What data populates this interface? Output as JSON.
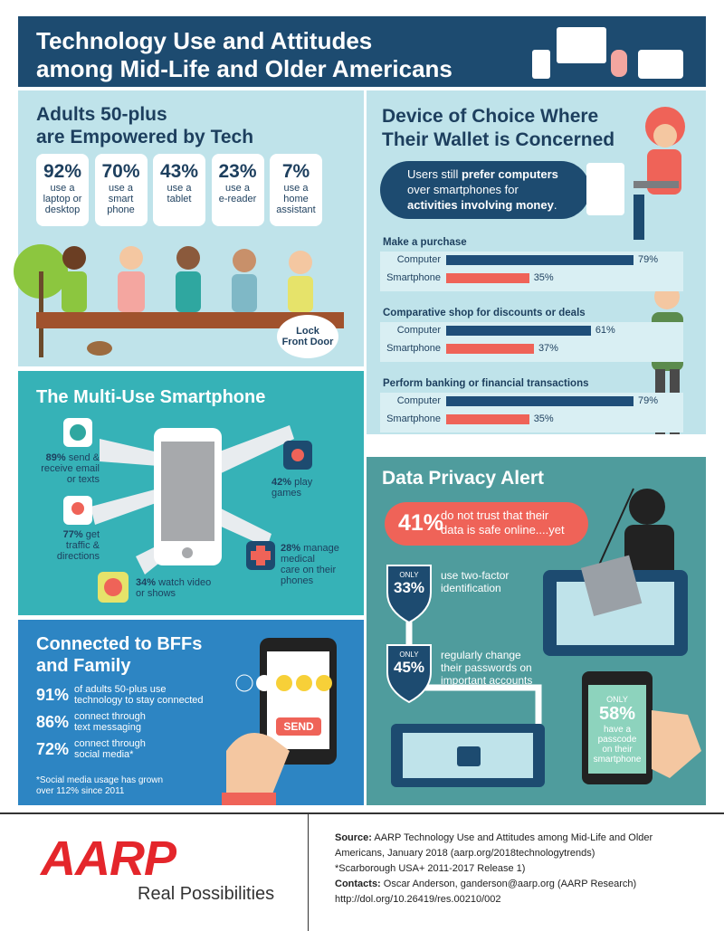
{
  "header": {
    "title_lines": [
      "Technology Use and Attitudes",
      "among Mid-Life and Older Americans"
    ]
  },
  "empowered": {
    "title_lines": [
      "Adults 50-plus",
      "are Empowered by Tech"
    ],
    "stats": [
      {
        "value": "92%",
        "label_lines": [
          "use a",
          "laptop or",
          "desktop"
        ]
      },
      {
        "value": "70%",
        "label_lines": [
          "use a",
          "smart",
          "phone"
        ]
      },
      {
        "value": "43%",
        "label_lines": [
          "use a",
          "tablet"
        ]
      },
      {
        "value": "23%",
        "label_lines": [
          "use a",
          "e-reader"
        ]
      },
      {
        "value": "7%",
        "label_lines": [
          "use a",
          "home",
          "assistant"
        ]
      }
    ],
    "sign_lines": [
      "Lock",
      "Front Door"
    ]
  },
  "smartphone": {
    "title": "The Multi-Use Smartphone",
    "uses": [
      {
        "value": "89%",
        "text_lines": [
          "send &",
          "receive email",
          "or texts"
        ]
      },
      {
        "value": "42%",
        "text_lines": [
          "play games"
        ]
      },
      {
        "value": "77%",
        "text_lines": [
          "get",
          "traffic &",
          "directions"
        ]
      },
      {
        "value": "28%",
        "text_lines": [
          "manage",
          "medical",
          "care on their",
          "phones"
        ]
      },
      {
        "value": "34%",
        "text_lines": [
          "watch video",
          "or shows"
        ]
      }
    ]
  },
  "bffs": {
    "title_lines": [
      "Connected to BFFs",
      "and Family"
    ],
    "stats": [
      {
        "value": "91%",
        "text_lines": [
          "of adults 50-plus use",
          "technology to stay connected"
        ]
      },
      {
        "value": "86%",
        "text_lines": [
          "connect through",
          "text messaging"
        ]
      },
      {
        "value": "72%",
        "text_lines": [
          "connect through",
          "social media*"
        ]
      }
    ],
    "note_lines": [
      "*Social media usage has grown",
      "over 112% since 2011"
    ],
    "button": "SEND"
  },
  "device": {
    "title_lines": [
      "Device of Choice Where",
      "Their Wallet is Concerned"
    ],
    "callout_lines": [
      [
        {
          "text": "Users still "
        },
        {
          "text": "prefer computers",
          "bold": true
        }
      ],
      [
        {
          "text": "over smartphones for"
        }
      ],
      [
        {
          "text": "activities involving money",
          "bold": true
        },
        {
          "text": "."
        }
      ]
    ],
    "chart": {
      "type": "bar",
      "xlim": [
        0,
        100
      ],
      "colors": {
        "Computer": "#1f4e79",
        "Smartphone": "#ef6358"
      },
      "groups": [
        {
          "title": "Make a purchase",
          "series": [
            {
              "name": "Computer",
              "value": 79,
              "value_label": "79%"
            },
            {
              "name": "Smartphone",
              "value": 35,
              "value_label": "35%"
            }
          ]
        },
        {
          "title": "Comparative shop for discounts or deals",
          "series": [
            {
              "name": "Computer",
              "value": 61,
              "value_label": "61%"
            },
            {
              "name": "Smartphone",
              "value": 37,
              "value_label": "37%"
            }
          ]
        },
        {
          "title": "Perform banking or financial transactions",
          "series": [
            {
              "name": "Computer",
              "value": 79,
              "value_label": "79%"
            },
            {
              "name": "Smartphone",
              "value": 35,
              "value_label": "35%"
            }
          ]
        }
      ]
    }
  },
  "privacy": {
    "title": "Data Privacy Alert",
    "alert": {
      "value": "41%",
      "text_lines": [
        "do not trust that their",
        "data is safe online....yet"
      ]
    },
    "items": [
      {
        "badge": "ONLY",
        "value": "33%",
        "text_lines": [
          "use two-factor",
          "identification"
        ]
      },
      {
        "badge": "ONLY",
        "value": "45%",
        "text_lines": [
          "regularly change",
          "their passwords on",
          "important accounts"
        ]
      }
    ],
    "phone": {
      "badge": "ONLY",
      "value": "58%",
      "text_lines": [
        "have a",
        "passcode",
        "on their",
        "smartphone"
      ]
    }
  },
  "footer": {
    "logo": "AARP",
    "tagline": "Real Possibilities",
    "lines": [
      {
        "label": "Source:",
        "text": "AARP Technology Use and Attitudes among Mid-Life and Older"
      },
      {
        "text": "Americans, January 2018 (aarp.org/2018technologytrends)"
      },
      {
        "text": "*Scarborough USA+ 2011-2017 Release 1)"
      },
      {
        "label": "Contacts:",
        "text": "Oscar Anderson, ganderson@aarp.org (AARP Research)"
      },
      {
        "text": "http://dol.org/10.26419/res.00210/002"
      }
    ]
  }
}
